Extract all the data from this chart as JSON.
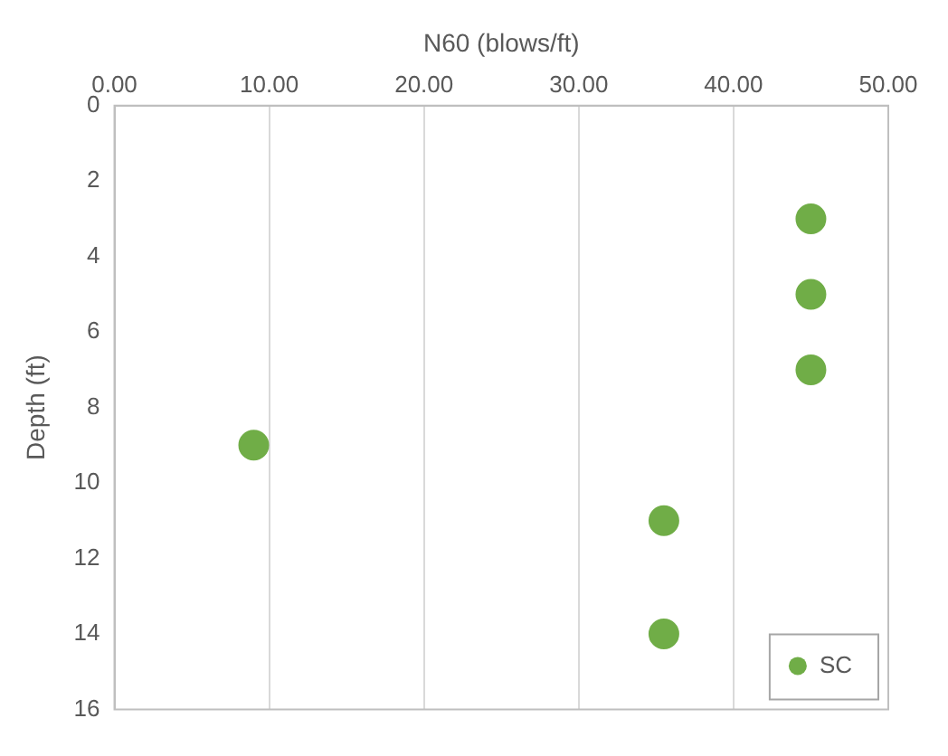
{
  "chart_data": {
    "type": "scatter",
    "xlabel": "N60 (blows/ft)",
    "ylabel": "Depth (ft)",
    "xlim": [
      0,
      50
    ],
    "xticks": [
      {
        "value": 0,
        "label": "0.00"
      },
      {
        "value": 10,
        "label": "10.00"
      },
      {
        "value": 20,
        "label": "20.00"
      },
      {
        "value": 30,
        "label": "30.00"
      },
      {
        "value": 40,
        "label": "40.00"
      },
      {
        "value": 50,
        "label": "50.00"
      }
    ],
    "ylim": [
      16,
      0
    ],
    "yticks": [
      0,
      2,
      4,
      6,
      8,
      10,
      12,
      14,
      16
    ],
    "series": [
      {
        "name": "SC",
        "color": "#70ad47",
        "x": [
          45,
          45,
          45,
          9,
          35.5,
          35.5
        ],
        "values": [
          3,
          5,
          7,
          9,
          11,
          14
        ]
      }
    ],
    "grid": "x",
    "legend": "bottom right",
    "marker": "circle"
  }
}
